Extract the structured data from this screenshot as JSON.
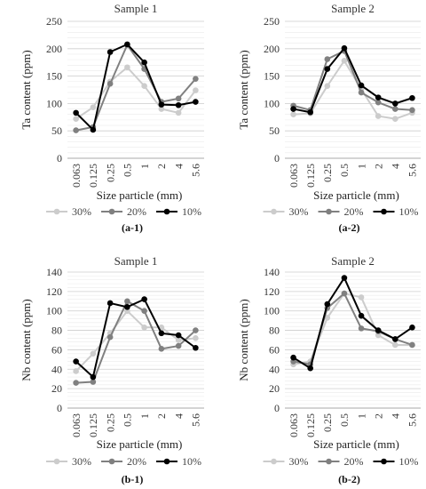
{
  "figure": {
    "legend_labels": [
      "30%",
      "20%",
      "10%"
    ]
  },
  "chart_data": [
    {
      "type": "line",
      "title": "Sample 1",
      "panel_label": "(a-1)",
      "xlabel": "Size particle (mm)",
      "ylabel": "Ta content (ppm)",
      "categories": [
        "0.063",
        "0.125",
        "0.25",
        "0.5",
        "1",
        "2",
        "4",
        "5.6"
      ],
      "ylim": [
        0,
        250
      ],
      "yticks": [
        0,
        50,
        100,
        150,
        200,
        250
      ],
      "grid": true,
      "legend": "bottom",
      "series": [
        {
          "name": "30%",
          "color": "#cccccc",
          "values": [
            72,
            93,
            140,
            166,
            132,
            90,
            83,
            124
          ]
        },
        {
          "name": "20%",
          "color": "#808080",
          "values": [
            51,
            57,
            136,
            207,
            163,
            103,
            109,
            145
          ]
        },
        {
          "name": "10%",
          "color": "#000000",
          "values": [
            83,
            52,
            194,
            208,
            175,
            98,
            97,
            103
          ]
        }
      ]
    },
    {
      "type": "line",
      "title": "Sample 2",
      "panel_label": "(a-2)",
      "xlabel": "Size particle (mm)",
      "ylabel": "Ta content (ppm)",
      "categories": [
        "0.063",
        "0.125",
        "0.25",
        "0.5",
        "1",
        "2",
        "4",
        "5.6"
      ],
      "ylim": [
        0,
        250
      ],
      "yticks": [
        0,
        50,
        100,
        150,
        200,
        250
      ],
      "grid": true,
      "legend": "bottom",
      "series": [
        {
          "name": "30%",
          "color": "#cccccc",
          "values": [
            80,
            82,
            132,
            178,
            126,
            77,
            72,
            83
          ]
        },
        {
          "name": "20%",
          "color": "#808080",
          "values": [
            96,
            88,
            181,
            196,
            120,
            102,
            90,
            88
          ]
        },
        {
          "name": "10%",
          "color": "#000000",
          "values": [
            90,
            84,
            163,
            201,
            133,
            111,
            100,
            110
          ]
        }
      ]
    },
    {
      "type": "line",
      "title": "Sample 1",
      "panel_label": "(b-1)",
      "xlabel": "Size particle (mm)",
      "ylabel": "Nb content (ppm)",
      "categories": [
        "0.063",
        "0.125",
        "0.25",
        "0.5",
        "1",
        "2",
        "4",
        "5.6"
      ],
      "ylim": [
        0,
        140
      ],
      "yticks": [
        0,
        20,
        40,
        60,
        80,
        100,
        120,
        140
      ],
      "grid": true,
      "legend": "bottom",
      "series": [
        {
          "name": "30%",
          "color": "#cccccc",
          "values": [
            38,
            56,
            77,
            100,
            83,
            83,
            70,
            72
          ]
        },
        {
          "name": "20%",
          "color": "#808080",
          "values": [
            26,
            27,
            73,
            110,
            100,
            61,
            64,
            80
          ]
        },
        {
          "name": "10%",
          "color": "#000000",
          "values": [
            48,
            32,
            108,
            104,
            112,
            77,
            75,
            62
          ]
        }
      ]
    },
    {
      "type": "line",
      "title": "Sample 2",
      "panel_label": "(b-2)",
      "xlabel": "Size particle (mm)",
      "ylabel": "Nb content (ppm)",
      "categories": [
        "0.063",
        "0.125",
        "0.25",
        "0.5",
        "1",
        "2",
        "4",
        "5.6"
      ],
      "ylim": [
        0,
        140
      ],
      "yticks": [
        0,
        20,
        40,
        60,
        80,
        100,
        120,
        140
      ],
      "grid": true,
      "legend": "bottom",
      "series": [
        {
          "name": "30%",
          "color": "#cccccc",
          "values": [
            45,
            48,
            93,
            118,
            114,
            75,
            65,
            65
          ]
        },
        {
          "name": "20%",
          "color": "#808080",
          "values": [
            48,
            45,
            103,
            118,
            82,
            79,
            71,
            65
          ]
        },
        {
          "name": "10%",
          "color": "#000000",
          "values": [
            52,
            41,
            107,
            134,
            95,
            80,
            71,
            83
          ]
        }
      ]
    }
  ]
}
